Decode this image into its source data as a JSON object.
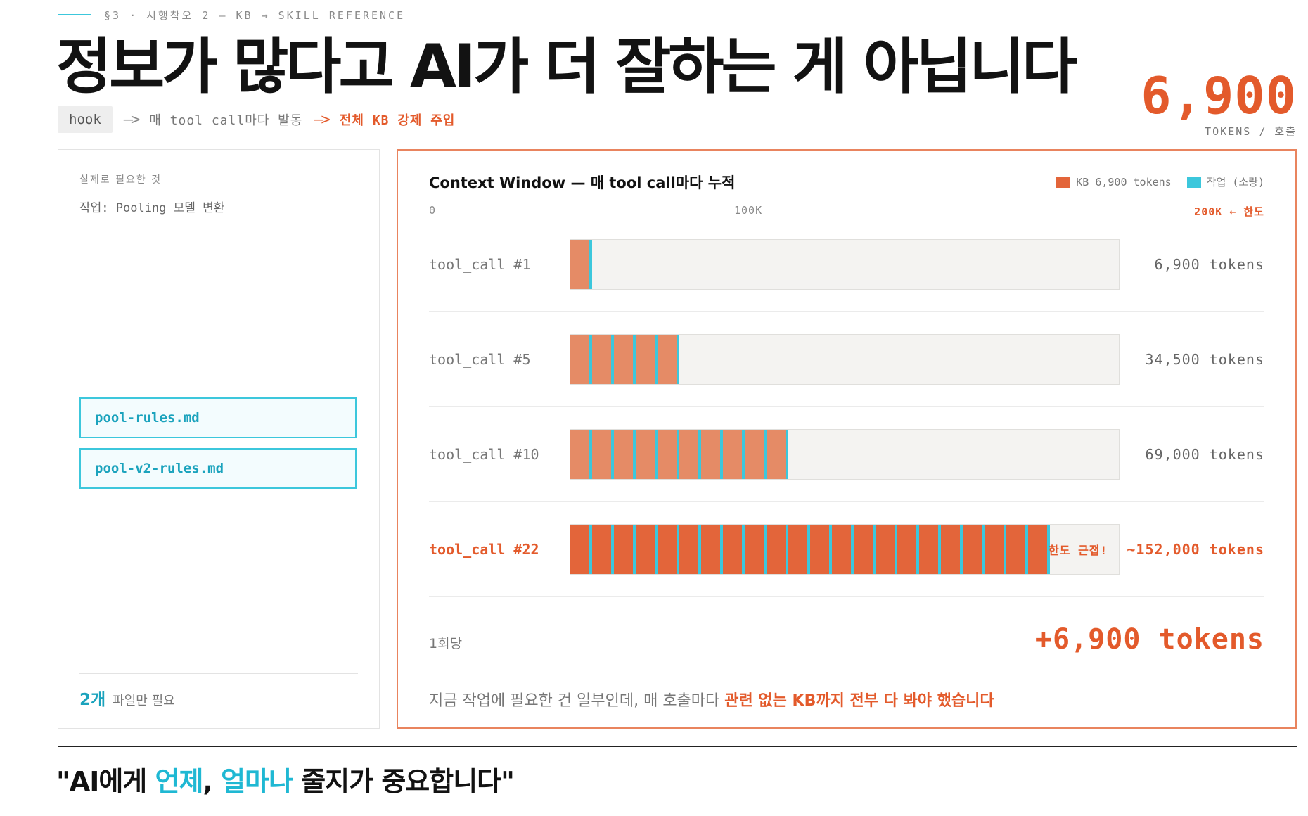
{
  "section": {
    "label": "§3 · 시행착오 2 — KB → SKILL REFERENCE"
  },
  "headline": "정보가 많다고 AI가 더 잘하는 게 아닙니다",
  "flow": {
    "hook": "hook",
    "arrow": "—>",
    "desc": "매 tool call마다 발동",
    "inject": "전체 KB 강제 주입"
  },
  "tokens_per_call": {
    "value": "6,900",
    "unit": "TOKENS / 호출"
  },
  "left_panel": {
    "title": "실제로 필요한 것",
    "task": "작업: Pooling 모델 변환",
    "files": [
      "pool-rules.md",
      "pool-v2-rules.md"
    ],
    "footer_count": "2개",
    "footer_text": "파일만 필요"
  },
  "right_panel": {
    "title": "Context Window — 매 tool call마다 누적",
    "legend": [
      {
        "label": "KB 6,900 tokens",
        "color": "#e3653a"
      },
      {
        "label": "작업 (소량)",
        "color": "#3cc7dc"
      }
    ],
    "scale": {
      "start": "0",
      "mid": "100K",
      "limit": "200K ← 한도"
    },
    "rows": [
      {
        "label": "tool_call #1",
        "value": "6,900 tokens",
        "calls": 1
      },
      {
        "label": "tool_call #5",
        "value": "34,500 tokens",
        "calls": 5
      },
      {
        "label": "tool_call #10",
        "value": "69,000 tokens",
        "calls": 10
      },
      {
        "label": "tool_call #22",
        "value": "~152,000 tokens",
        "calls": 22,
        "note": "한도 근접!"
      }
    ],
    "per_call_label": "1회당",
    "per_call_value": "+6,900 tokens",
    "caption_plain": "지금 작업에 필요한 건 일부인데, 매 호출마다 ",
    "caption_hot": "관련 없는 KB까지 전부 다 봐야 했습니다"
  },
  "quote": {
    "open": "\"AI에게 ",
    "when": "언제",
    "comma": ", ",
    "howmuch": "얼마나",
    "rest": " 줄지가 중요합니다\""
  },
  "colors": {
    "accent": "#e35a2b",
    "cyan": "#3cc7dc"
  }
}
